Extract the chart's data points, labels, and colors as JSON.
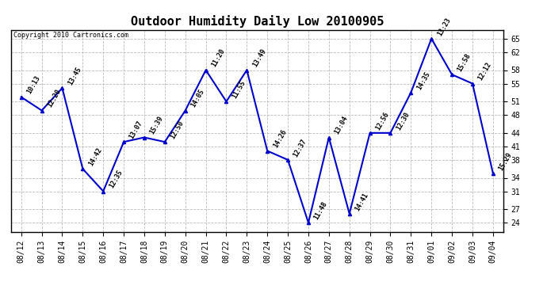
{
  "title": "Outdoor Humidity Daily Low 20100905",
  "copyright": "Copyright 2010 Cartronics.com",
  "background_color": "#ffffff",
  "line_color": "#0000cc",
  "grid_color": "#bbbbbb",
  "dates": [
    "08/12",
    "08/13",
    "08/14",
    "08/15",
    "08/16",
    "08/17",
    "08/18",
    "08/19",
    "08/20",
    "08/21",
    "08/22",
    "08/23",
    "08/24",
    "08/25",
    "08/26",
    "08/27",
    "08/28",
    "08/29",
    "08/30",
    "08/31",
    "09/01",
    "09/02",
    "09/03",
    "09/04"
  ],
  "times": [
    "10:13",
    "12:20",
    "13:45",
    "14:42",
    "12:35",
    "13:07",
    "15:39",
    "12:50",
    "14:05",
    "11:20",
    "11:55",
    "13:49",
    "14:26",
    "12:37",
    "11:48",
    "13:04",
    "14:41",
    "12:56",
    "12:30",
    "14:35",
    "13:23",
    "15:58",
    "12:12",
    "15:29"
  ],
  "values": [
    52,
    49,
    54,
    36,
    31,
    42,
    43,
    42,
    49,
    58,
    51,
    58,
    40,
    38,
    24,
    43,
    26,
    44,
    44,
    53,
    65,
    57,
    55,
    35
  ],
  "ylim": [
    22,
    67
  ],
  "yticks": [
    24,
    27,
    31,
    34,
    38,
    41,
    44,
    48,
    51,
    55,
    58,
    62,
    65
  ],
  "marker": "^",
  "markersize": 3,
  "linewidth": 1.5,
  "title_fontsize": 11,
  "label_fontsize": 6,
  "tick_fontsize": 7,
  "copyright_fontsize": 6
}
